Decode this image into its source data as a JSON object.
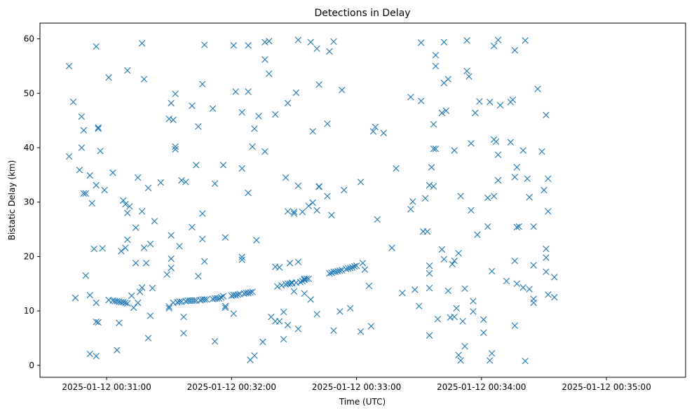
{
  "chart_data": {
    "type": "scatter",
    "title": "Detections in Delay",
    "xlabel": "Time (UTC)",
    "ylabel": "Bistatic Delay (km)",
    "marker": "x",
    "color": "#1f77b4",
    "grid": false,
    "legend": "none",
    "x_unit": "time",
    "xlim": [
      "2025-01-12 00:30:28",
      "2025-01-12 00:35:38"
    ],
    "ylim": [
      -2.2,
      62.9
    ],
    "x_ticks": [
      {
        "t": "2025-01-12 00:31:00",
        "label": "2025-01-12 00:31:00"
      },
      {
        "t": "2025-01-12 00:32:00",
        "label": "2025-01-12 00:32:00"
      },
      {
        "t": "2025-01-12 00:33:00",
        "label": "2025-01-12 00:33:00"
      },
      {
        "t": "2025-01-12 00:34:00",
        "label": "2025-01-12 00:34:00"
      },
      {
        "t": "2025-01-12 00:35:00",
        "label": "2025-01-12 00:35:00"
      }
    ],
    "y_ticks": [
      0,
      10,
      20,
      30,
      40,
      50,
      60
    ],
    "points": [
      [
        "00:30:42",
        55.0
      ],
      [
        "00:30:42",
        38.4
      ],
      [
        "00:30:44",
        48.4
      ],
      [
        "00:30:45",
        12.4
      ],
      [
        "00:30:47",
        35.9
      ],
      [
        "00:30:48",
        45.7
      ],
      [
        "00:30:48",
        40.0
      ],
      [
        "00:30:49",
        43.2
      ],
      [
        "00:30:49",
        31.6
      ],
      [
        "00:30:50",
        31.6
      ],
      [
        "00:30:50",
        16.5
      ],
      [
        "00:30:52",
        34.9
      ],
      [
        "00:30:52",
        2.1
      ],
      [
        "00:30:52",
        12.9
      ],
      [
        "00:30:53",
        29.8
      ],
      [
        "00:30:54",
        21.4
      ],
      [
        "00:30:55",
        33.1
      ],
      [
        "00:30:55",
        11.5
      ],
      [
        "00:30:55",
        8.0
      ],
      [
        "00:30:55",
        1.7
      ],
      [
        "00:30:55",
        58.6
      ],
      [
        "00:30:56",
        43.5
      ],
      [
        "00:30:56",
        43.7
      ],
      [
        "00:30:56",
        7.9
      ],
      [
        "00:30:57",
        39.4
      ],
      [
        "00:30:58",
        21.5
      ],
      [
        "00:30:59",
        32.2
      ],
      [
        "00:31:01",
        52.9
      ],
      [
        "00:31:01",
        12.0
      ],
      [
        "00:31:03",
        35.4
      ],
      [
        "00:31:03",
        11.9
      ],
      [
        "00:31:04",
        11.8
      ],
      [
        "00:31:05",
        11.8
      ],
      [
        "00:31:05",
        2.8
      ],
      [
        "00:31:06",
        11.7
      ],
      [
        "00:31:06",
        7.8
      ],
      [
        "00:31:07",
        11.6
      ],
      [
        "00:31:07",
        21.0
      ],
      [
        "00:31:08",
        30.3
      ],
      [
        "00:31:08",
        11.6
      ],
      [
        "00:31:09",
        29.6
      ],
      [
        "00:31:09",
        21.6
      ],
      [
        "00:31:09",
        11.5
      ],
      [
        "00:31:10",
        28.0
      ],
      [
        "00:31:10",
        23.1
      ],
      [
        "00:31:10",
        11.4
      ],
      [
        "00:31:10",
        54.2
      ],
      [
        "00:31:11",
        29.2
      ],
      [
        "00:31:12",
        12.8
      ],
      [
        "00:31:13",
        10.6
      ],
      [
        "00:31:14",
        18.8
      ],
      [
        "00:31:14",
        25.3
      ],
      [
        "00:31:15",
        34.5
      ],
      [
        "00:31:15",
        11.5
      ],
      [
        "00:31:16",
        13.5
      ],
      [
        "00:31:17",
        14.3
      ],
      [
        "00:31:17",
        28.3
      ],
      [
        "00:31:17",
        59.2
      ],
      [
        "00:31:18",
        21.6
      ],
      [
        "00:31:18",
        52.6
      ],
      [
        "00:31:19",
        18.8
      ],
      [
        "00:31:20",
        32.6
      ],
      [
        "00:31:20",
        5.0
      ],
      [
        "00:31:21",
        9.1
      ],
      [
        "00:31:21",
        22.3
      ],
      [
        "00:31:22",
        14.2
      ],
      [
        "00:31:23",
        26.5
      ],
      [
        "00:31:26",
        33.6
      ],
      [
        "00:31:29",
        16.7
      ],
      [
        "00:31:30",
        45.3
      ],
      [
        "00:31:30",
        10.5
      ],
      [
        "00:31:30",
        10.8
      ],
      [
        "00:31:31",
        48.2
      ],
      [
        "00:31:31",
        23.9
      ],
      [
        "00:31:31",
        19.6
      ],
      [
        "00:31:31",
        17.9
      ],
      [
        "00:31:32",
        45.1
      ],
      [
        "00:31:32",
        11.5
      ],
      [
        "00:31:33",
        39.7
      ],
      [
        "00:31:33",
        40.2
      ],
      [
        "00:31:33",
        49.9
      ],
      [
        "00:31:34",
        11.6
      ],
      [
        "00:31:35",
        21.9
      ],
      [
        "00:31:35",
        11.7
      ],
      [
        "00:31:36",
        34.0
      ],
      [
        "00:31:36",
        11.7
      ],
      [
        "00:31:37",
        5.9
      ],
      [
        "00:31:37",
        8.9
      ],
      [
        "00:31:38",
        11.8
      ],
      [
        "00:31:38",
        33.7
      ],
      [
        "00:31:39",
        11.9
      ],
      [
        "00:31:40",
        11.9
      ],
      [
        "00:31:41",
        47.7
      ],
      [
        "00:31:41",
        25.4
      ],
      [
        "00:31:41",
        11.9
      ],
      [
        "00:31:42",
        11.9
      ],
      [
        "00:31:43",
        36.8
      ],
      [
        "00:31:43",
        11.9
      ],
      [
        "00:31:44",
        43.9
      ],
      [
        "00:31:44",
        16.4
      ],
      [
        "00:31:45",
        12.0
      ],
      [
        "00:31:46",
        51.7
      ],
      [
        "00:31:46",
        12.1
      ],
      [
        "00:31:46",
        27.9
      ],
      [
        "00:31:46",
        23.2
      ],
      [
        "00:31:47",
        19.1
      ],
      [
        "00:31:47",
        58.9
      ],
      [
        "00:31:47",
        12.1
      ],
      [
        "00:31:48",
        12.1
      ],
      [
        "00:31:51",
        47.2
      ],
      [
        "00:31:51",
        12.2
      ],
      [
        "00:31:52",
        33.4
      ],
      [
        "00:31:52",
        12.3
      ],
      [
        "00:31:52",
        4.4
      ],
      [
        "00:31:53",
        12.3
      ],
      [
        "00:31:54",
        12.3
      ],
      [
        "00:31:55",
        12.5
      ],
      [
        "00:31:56",
        12.7
      ],
      [
        "00:31:56",
        36.8
      ],
      [
        "00:31:57",
        23.5
      ],
      [
        "00:31:57",
        10.9
      ],
      [
        "00:31:57",
        10.6
      ],
      [
        "00:32:00",
        12.8
      ],
      [
        "00:32:01",
        58.8
      ],
      [
        "00:32:01",
        9.5
      ],
      [
        "00:32:01",
        12.9
      ],
      [
        "00:32:02",
        50.3
      ],
      [
        "00:32:02",
        12.9
      ],
      [
        "00:32:03",
        13.0
      ],
      [
        "00:32:04",
        13.1
      ],
      [
        "00:32:05",
        46.5
      ],
      [
        "00:32:05",
        36.2
      ],
      [
        "00:32:05",
        19.4
      ],
      [
        "00:32:05",
        19.9
      ],
      [
        "00:32:06",
        13.2
      ],
      [
        "00:32:07",
        13.3
      ],
      [
        "00:32:08",
        58.8
      ],
      [
        "00:32:08",
        50.3
      ],
      [
        "00:32:08",
        31.7
      ],
      [
        "00:32:08",
        13.3
      ],
      [
        "00:32:09",
        1.0
      ],
      [
        "00:32:09",
        13.4
      ],
      [
        "00:32:10",
        40.2
      ],
      [
        "00:32:10",
        13.5
      ],
      [
        "00:32:11",
        1.8
      ],
      [
        "00:32:11",
        43.5
      ],
      [
        "00:32:12",
        23.0
      ],
      [
        "00:32:13",
        45.8
      ],
      [
        "00:32:15",
        4.3
      ],
      [
        "00:32:16",
        56.2
      ],
      [
        "00:32:16",
        59.4
      ],
      [
        "00:32:16",
        39.3
      ],
      [
        "00:32:18",
        59.6
      ],
      [
        "00:32:18",
        53.6
      ],
      [
        "00:32:19",
        8.9
      ],
      [
        "00:32:21",
        46.1
      ],
      [
        "00:32:21",
        18.1
      ],
      [
        "00:32:21",
        8.1
      ],
      [
        "00:32:22",
        14.5
      ],
      [
        "00:32:23",
        8.1
      ],
      [
        "00:32:23",
        18.0
      ],
      [
        "00:32:24",
        14.7
      ],
      [
        "00:32:25",
        9.8
      ],
      [
        "00:32:25",
        4.8
      ],
      [
        "00:32:26",
        34.5
      ],
      [
        "00:32:26",
        14.9
      ],
      [
        "00:32:27",
        15.0
      ],
      [
        "00:32:27",
        7.4
      ],
      [
        "00:32:27",
        48.2
      ],
      [
        "00:32:27",
        28.3
      ],
      [
        "00:32:28",
        18.8
      ],
      [
        "00:32:28",
        15.0
      ],
      [
        "00:32:29",
        15.1
      ],
      [
        "00:32:29",
        15.2
      ],
      [
        "00:32:30",
        28.2
      ],
      [
        "00:32:30",
        27.9
      ],
      [
        "00:32:30",
        13.6
      ],
      [
        "00:32:31",
        15.2
      ],
      [
        "00:32:31",
        50.1
      ],
      [
        "00:32:32",
        6.7
      ],
      [
        "00:32:32",
        59.8
      ],
      [
        "00:32:32",
        33.0
      ],
      [
        "00:32:32",
        19.0
      ],
      [
        "00:32:33",
        15.3
      ],
      [
        "00:32:34",
        28.2
      ],
      [
        "00:32:34",
        15.5
      ],
      [
        "00:32:35",
        13.2
      ],
      [
        "00:32:35",
        15.7
      ],
      [
        "00:32:35",
        15.9
      ],
      [
        "00:32:36",
        15.9
      ],
      [
        "00:32:37",
        29.3
      ],
      [
        "00:32:37",
        15.9
      ],
      [
        "00:32:38",
        59.4
      ],
      [
        "00:32:38",
        12.1
      ],
      [
        "00:32:39",
        29.9
      ],
      [
        "00:32:39",
        43.0
      ],
      [
        "00:32:41",
        28.5
      ],
      [
        "00:32:41",
        58.2
      ],
      [
        "00:32:41",
        9.4
      ],
      [
        "00:32:42",
        51.6
      ],
      [
        "00:32:42",
        32.9
      ],
      [
        "00:32:42",
        32.8
      ],
      [
        "00:32:46",
        44.4
      ],
      [
        "00:32:46",
        31.1
      ],
      [
        "00:32:47",
        57.7
      ],
      [
        "00:32:47",
        16.9
      ],
      [
        "00:32:48",
        27.6
      ],
      [
        "00:32:48",
        17.0
      ],
      [
        "00:32:49",
        59.5
      ],
      [
        "00:32:49",
        6.4
      ],
      [
        "00:32:49",
        17.2
      ],
      [
        "00:32:50",
        17.2
      ],
      [
        "00:32:51",
        17.3
      ],
      [
        "00:32:52",
        17.4
      ],
      [
        "00:32:52",
        9.9
      ],
      [
        "00:32:53",
        50.6
      ],
      [
        "00:32:53",
        17.5
      ],
      [
        "00:32:54",
        32.2
      ],
      [
        "00:32:55",
        17.7
      ],
      [
        "00:32:56",
        17.8
      ],
      [
        "00:32:57",
        10.5
      ],
      [
        "00:32:57",
        17.9
      ],
      [
        "00:32:58",
        18.0
      ],
      [
        "00:32:59",
        18.2
      ],
      [
        "00:33:00",
        18.3
      ],
      [
        "00:33:02",
        6.2
      ],
      [
        "00:33:02",
        33.7
      ],
      [
        "00:33:03",
        18.8
      ],
      [
        "00:33:04",
        17.6
      ],
      [
        "00:33:06",
        14.6
      ],
      [
        "00:33:07",
        7.2
      ],
      [
        "00:33:08",
        43.0
      ],
      [
        "00:33:09",
        43.8
      ],
      [
        "00:33:10",
        26.8
      ],
      [
        "00:33:13",
        42.7
      ],
      [
        "00:33:17",
        21.6
      ],
      [
        "00:33:19",
        36.2
      ],
      [
        "00:33:22",
        13.3
      ],
      [
        "00:33:26",
        49.3
      ],
      [
        "00:33:26",
        28.7
      ],
      [
        "00:33:27",
        30.1
      ],
      [
        "00:33:28",
        13.9
      ],
      [
        "00:33:30",
        10.9
      ],
      [
        "00:33:31",
        48.6
      ],
      [
        "00:33:31",
        59.3
      ],
      [
        "00:33:32",
        24.6
      ],
      [
        "00:33:33",
        30.7
      ],
      [
        "00:33:34",
        24.6
      ],
      [
        "00:33:35",
        33.1
      ],
      [
        "00:33:35",
        18.3
      ],
      [
        "00:33:35",
        16.9
      ],
      [
        "00:33:35",
        14.2
      ],
      [
        "00:33:35",
        5.5
      ],
      [
        "00:33:36",
        36.4
      ],
      [
        "00:33:37",
        32.9
      ],
      [
        "00:33:37",
        39.8
      ],
      [
        "00:33:37",
        44.3
      ],
      [
        "00:33:38",
        57.0
      ],
      [
        "00:33:38",
        55.0
      ],
      [
        "00:33:38",
        39.8
      ],
      [
        "00:33:39",
        8.5
      ],
      [
        "00:33:41",
        46.4
      ],
      [
        "00:33:41",
        21.3
      ],
      [
        "00:33:42",
        51.9
      ],
      [
        "00:33:42",
        59.4
      ],
      [
        "00:33:42",
        19.5
      ],
      [
        "00:33:43",
        46.8
      ],
      [
        "00:33:44",
        52.6
      ],
      [
        "00:33:44",
        13.7
      ],
      [
        "00:33:45",
        8.8
      ],
      [
        "00:33:46",
        18.6
      ],
      [
        "00:33:47",
        8.9
      ],
      [
        "00:33:47",
        19.2
      ],
      [
        "00:33:47",
        39.5
      ],
      [
        "00:33:48",
        10.5
      ],
      [
        "00:33:49",
        1.9
      ],
      [
        "00:33:49",
        20.6
      ],
      [
        "00:33:50",
        31.1
      ],
      [
        "00:33:50",
        0.9
      ],
      [
        "00:33:51",
        8.1
      ],
      [
        "00:33:52",
        14.1
      ],
      [
        "00:33:52",
        3.5
      ],
      [
        "00:33:53",
        54.1
      ],
      [
        "00:33:53",
        59.7
      ],
      [
        "00:33:54",
        53.1
      ],
      [
        "00:33:55",
        40.8
      ],
      [
        "00:33:55",
        28.5
      ],
      [
        "00:33:56",
        11.8
      ],
      [
        "00:33:56",
        9.9
      ],
      [
        "00:33:57",
        46.4
      ],
      [
        "00:33:58",
        24.0
      ],
      [
        "00:33:59",
        48.5
      ],
      [
        "00:34:01",
        6.0
      ],
      [
        "00:34:01",
        8.4
      ],
      [
        "00:34:03",
        30.8
      ],
      [
        "00:34:03",
        25.5
      ],
      [
        "00:34:04",
        48.4
      ],
      [
        "00:34:04",
        0.9
      ],
      [
        "00:34:05",
        2.2
      ],
      [
        "00:34:05",
        17.3
      ],
      [
        "00:34:06",
        31.1
      ],
      [
        "00:34:06",
        41.5
      ],
      [
        "00:34:06",
        58.7
      ],
      [
        "00:34:07",
        41.1
      ],
      [
        "00:34:08",
        59.8
      ],
      [
        "00:34:08",
        38.7
      ],
      [
        "00:34:08",
        34.0
      ],
      [
        "00:34:09",
        47.8
      ],
      [
        "00:34:12",
        15.5
      ],
      [
        "00:34:14",
        48.4
      ],
      [
        "00:34:14",
        41.0
      ],
      [
        "00:34:15",
        48.8
      ],
      [
        "00:34:16",
        57.9
      ],
      [
        "00:34:16",
        19.2
      ],
      [
        "00:34:16",
        34.6
      ],
      [
        "00:34:16",
        7.3
      ],
      [
        "00:34:17",
        25.4
      ],
      [
        "00:34:17",
        15.0
      ],
      [
        "00:34:17",
        36.4
      ],
      [
        "00:34:18",
        25.5
      ],
      [
        "00:34:20",
        39.5
      ],
      [
        "00:34:20",
        14.3
      ],
      [
        "00:34:21",
        59.7
      ],
      [
        "00:34:21",
        0.8
      ],
      [
        "00:34:22",
        34.3
      ],
      [
        "00:34:23",
        30.9
      ],
      [
        "00:34:23",
        14.0
      ],
      [
        "00:34:25",
        12.2
      ],
      [
        "00:34:25",
        11.5
      ],
      [
        "00:34:25",
        18.4
      ],
      [
        "00:34:25",
        25.5
      ],
      [
        "00:34:27",
        50.8
      ],
      [
        "00:34:29",
        39.3
      ],
      [
        "00:34:30",
        32.2
      ],
      [
        "00:34:31",
        46.0
      ],
      [
        "00:34:31",
        21.4
      ],
      [
        "00:34:31",
        19.8
      ],
      [
        "00:34:31",
        17.2
      ],
      [
        "00:34:32",
        28.3
      ],
      [
        "00:34:32",
        13.0
      ],
      [
        "00:34:32",
        34.3
      ],
      [
        "00:34:35",
        16.2
      ],
      [
        "00:34:35",
        12.5
      ]
    ]
  }
}
